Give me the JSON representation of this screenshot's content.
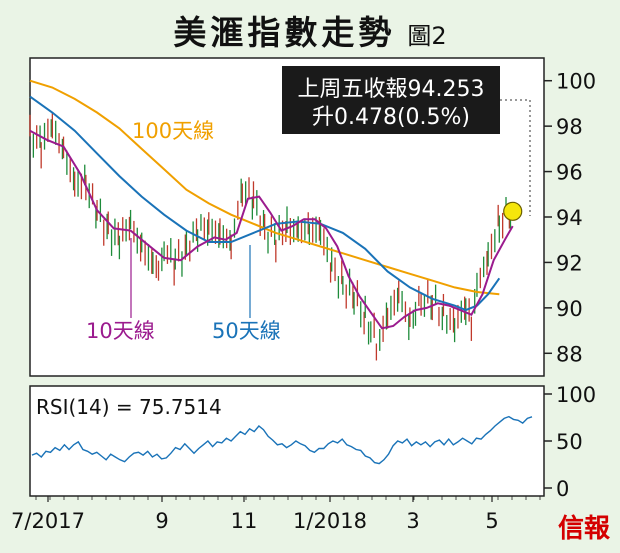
{
  "title": "美滙指數走勢",
  "figure_label": "圖2",
  "source_logo": "信報",
  "chart_data": [
    {
      "type": "line",
      "name": "price-panel",
      "annotation": [
        "上周五收報94.253",
        "升0.478(0.5%)"
      ],
      "series": [
        {
          "name": "10天線",
          "color": "#9b1b8e"
        },
        {
          "name": "50天線",
          "color": "#1a73b8"
        },
        {
          "name": "100天線",
          "color": "#f0a000"
        },
        {
          "name": "price",
          "color_up": "#1e8b3a",
          "color_down": "#c0392b"
        }
      ],
      "ylim": [
        87,
        101
      ],
      "yticks": [
        88,
        90,
        92,
        94,
        96,
        98,
        100
      ],
      "xticks": [
        "7/2017",
        "9",
        "11",
        "1/2018",
        "3",
        "5"
      ],
      "last_close": 94.253,
      "ma100": [
        [
          0,
          100.0
        ],
        [
          20,
          99.7
        ],
        [
          40,
          99.2
        ],
        [
          60,
          98.6
        ],
        [
          80,
          97.9
        ],
        [
          100,
          97.0
        ],
        [
          120,
          96.1
        ],
        [
          140,
          95.2
        ],
        [
          160,
          94.6
        ],
        [
          180,
          94.1
        ],
        [
          200,
          93.7
        ],
        [
          220,
          93.3
        ],
        [
          240,
          93.0
        ],
        [
          260,
          92.7
        ],
        [
          280,
          92.4
        ],
        [
          300,
          92.1
        ],
        [
          320,
          91.8
        ],
        [
          340,
          91.5
        ],
        [
          360,
          91.2
        ],
        [
          380,
          90.9
        ],
        [
          400,
          90.7
        ],
        [
          420,
          90.6
        ]
      ],
      "ma50": [
        [
          0,
          99.3
        ],
        [
          20,
          98.6
        ],
        [
          40,
          97.8
        ],
        [
          60,
          96.8
        ],
        [
          80,
          95.8
        ],
        [
          100,
          94.9
        ],
        [
          120,
          94.1
        ],
        [
          140,
          93.4
        ],
        [
          160,
          92.9
        ],
        [
          180,
          92.9
        ],
        [
          200,
          93.3
        ],
        [
          220,
          93.7
        ],
        [
          240,
          93.8
        ],
        [
          260,
          93.7
        ],
        [
          280,
          93.3
        ],
        [
          300,
          92.6
        ],
        [
          320,
          91.6
        ],
        [
          340,
          90.9
        ],
        [
          360,
          90.4
        ],
        [
          380,
          90.1
        ],
        [
          390,
          89.9
        ],
        [
          400,
          90.1
        ],
        [
          410,
          90.6
        ],
        [
          420,
          91.3
        ]
      ],
      "ma10": [
        [
          0,
          97.8
        ],
        [
          15,
          97.4
        ],
        [
          30,
          97.1
        ],
        [
          45,
          95.9
        ],
        [
          60,
          94.3
        ],
        [
          75,
          93.5
        ],
        [
          90,
          93.4
        ],
        [
          105,
          92.8
        ],
        [
          120,
          92.2
        ],
        [
          135,
          92.1
        ],
        [
          150,
          92.7
        ],
        [
          165,
          93.1
        ],
        [
          175,
          93.0
        ],
        [
          185,
          93.3
        ],
        [
          195,
          94.8
        ],
        [
          205,
          94.9
        ],
        [
          215,
          94.2
        ],
        [
          225,
          93.4
        ],
        [
          235,
          93.6
        ],
        [
          245,
          93.9
        ],
        [
          255,
          93.9
        ],
        [
          265,
          93.5
        ],
        [
          275,
          92.7
        ],
        [
          285,
          91.4
        ],
        [
          295,
          90.5
        ],
        [
          305,
          89.8
        ],
        [
          315,
          89.1
        ],
        [
          325,
          89.2
        ],
        [
          335,
          89.6
        ],
        [
          345,
          89.9
        ],
        [
          355,
          90.0
        ],
        [
          365,
          90.2
        ],
        [
          375,
          90.1
        ],
        [
          385,
          89.9
        ],
        [
          395,
          89.7
        ],
        [
          405,
          90.6
        ],
        [
          415,
          92.1
        ],
        [
          425,
          93.0
        ],
        [
          432,
          93.6
        ]
      ],
      "price": [
        [
          0,
          97.9
        ],
        [
          10,
          97.3
        ],
        [
          20,
          97.7
        ],
        [
          30,
          97.0
        ],
        [
          40,
          95.8
        ],
        [
          50,
          95.2
        ],
        [
          60,
          94.2
        ],
        [
          70,
          93.6
        ],
        [
          80,
          93.1
        ],
        [
          90,
          93.4
        ],
        [
          100,
          92.8
        ],
        [
          110,
          92.2
        ],
        [
          115,
          91.6
        ],
        [
          120,
          92.3
        ],
        [
          130,
          92.0
        ],
        [
          140,
          92.8
        ],
        [
          150,
          93.4
        ],
        [
          160,
          93.2
        ],
        [
          170,
          93.5
        ],
        [
          180,
          93.0
        ],
        [
          190,
          94.8
        ],
        [
          200,
          94.9
        ],
        [
          210,
          93.7
        ],
        [
          220,
          92.9
        ],
        [
          230,
          93.3
        ],
        [
          240,
          93.8
        ],
        [
          250,
          93.5
        ],
        [
          260,
          93.0
        ],
        [
          270,
          92.1
        ],
        [
          280,
          91.2
        ],
        [
          290,
          90.3
        ],
        [
          300,
          89.4
        ],
        [
          305,
          89.0
        ],
        [
          310,
          88.5
        ],
        [
          320,
          89.5
        ],
        [
          330,
          90.3
        ],
        [
          340,
          89.7
        ],
        [
          345,
          89.6
        ],
        [
          350,
          90.3
        ],
        [
          360,
          90.0
        ],
        [
          370,
          89.7
        ],
        [
          380,
          89.6
        ],
        [
          390,
          89.7
        ],
        [
          395,
          89.6
        ],
        [
          400,
          90.8
        ],
        [
          410,
          92.6
        ],
        [
          420,
          93.6
        ],
        [
          430,
          94.0
        ],
        [
          432,
          94.25
        ]
      ]
    },
    {
      "type": "line",
      "name": "rsi-panel",
      "label": "RSI(14) = 75.7514",
      "color": "#1a73b8",
      "ylim": [
        0,
        100
      ],
      "yticks": [
        0,
        50,
        100
      ],
      "values": [
        35,
        37,
        33,
        39,
        38,
        43,
        40,
        46,
        41,
        46,
        49,
        41,
        39,
        36,
        38,
        34,
        30,
        36,
        33,
        30,
        28,
        33,
        37,
        38,
        35,
        39,
        33,
        36,
        31,
        32,
        37,
        43,
        41,
        47,
        42,
        37,
        42,
        46,
        50,
        44,
        49,
        48,
        53,
        50,
        55,
        60,
        57,
        63,
        60,
        66,
        62,
        55,
        51,
        46,
        47,
        43,
        46,
        50,
        47,
        45,
        40,
        38,
        42,
        42,
        47,
        50,
        48,
        52,
        46,
        44,
        41,
        40,
        34,
        32,
        27,
        26,
        30,
        36,
        45,
        50,
        48,
        52,
        45,
        49,
        46,
        49,
        44,
        49,
        51,
        46,
        52,
        46,
        49,
        53,
        50,
        47,
        53,
        52,
        57,
        61,
        66,
        70,
        74,
        76,
        73,
        72,
        69,
        74,
        75.75
      ]
    }
  ]
}
